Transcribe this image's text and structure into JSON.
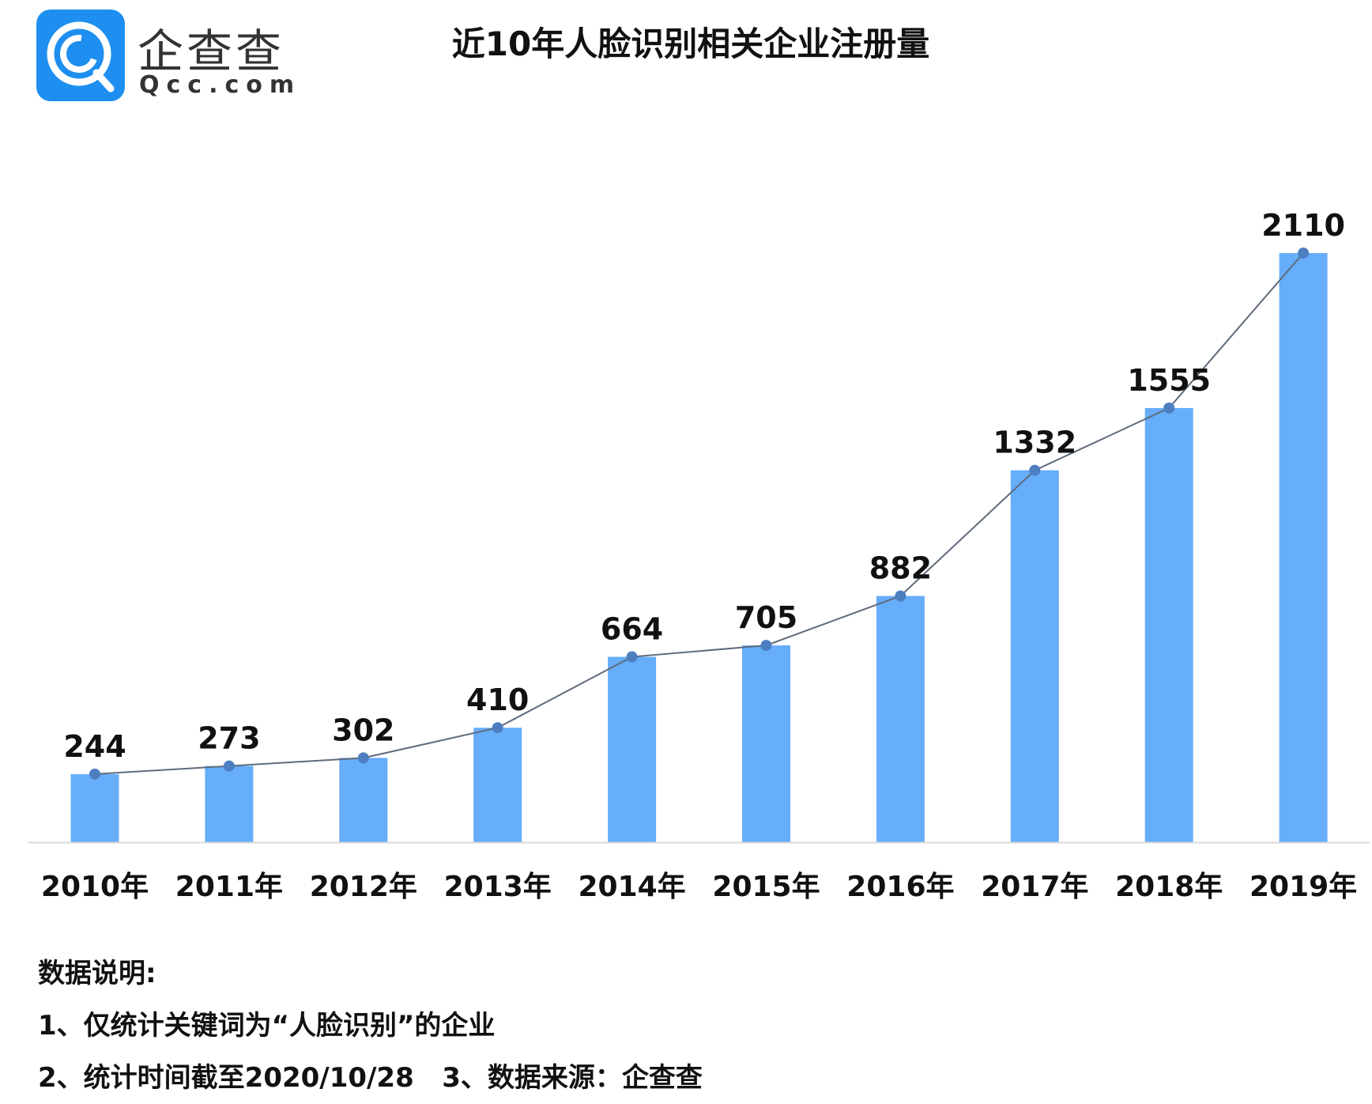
{
  "logo": {
    "cn": "企查查",
    "en": "Qcc.com"
  },
  "chart_data": {
    "type": "bar",
    "title": "近10年人脸识别相关企业注册量",
    "categories": [
      "2010年",
      "2011年",
      "2012年",
      "2013年",
      "2014年",
      "2015年",
      "2016年",
      "2017年",
      "2018年",
      "2019年"
    ],
    "values": [
      244,
      273,
      302,
      410,
      664,
      705,
      882,
      1332,
      1555,
      2110
    ],
    "overlay_line": true,
    "xlabel": "",
    "ylabel": "",
    "ylim": [
      0,
      2110
    ],
    "grid": false,
    "colors": {
      "bar": "#66adfa",
      "line": "#5f6b7c",
      "marker": "#4d7fc0"
    }
  },
  "notes": {
    "heading": "数据说明:",
    "line1": "1、仅统计关键词为“人脸识别”的企业",
    "line2": "2、统计时间截至2020/10/28   3、数据来源：企查查"
  }
}
